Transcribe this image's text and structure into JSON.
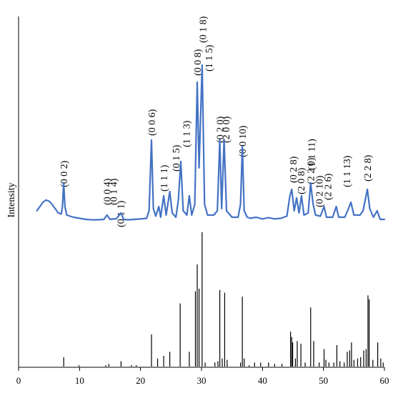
{
  "chart_data": {
    "type": "line",
    "ylabel": "Intensity",
    "xlabel": "",
    "xlim": [
      0,
      60
    ],
    "x_ticks": [
      "0",
      "10",
      "20",
      "30",
      "40",
      "50",
      "60"
    ],
    "grid": false,
    "colors": {
      "experimental": "#4472c4",
      "reference": "#000000",
      "axis": "#000000"
    },
    "series": [
      {
        "type": "line",
        "points": [
          [
            3,
            0.05
          ],
          [
            3.5,
            0.07
          ],
          [
            4,
            0.09
          ],
          [
            4.5,
            0.1
          ],
          [
            5,
            0.095
          ],
          [
            5.5,
            0.08
          ],
          [
            6,
            0.06
          ],
          [
            6.5,
            0.04
          ],
          [
            7,
            0.035
          ],
          [
            7.2,
            0.07
          ],
          [
            7.4,
            0.18
          ],
          [
            7.6,
            0.07
          ],
          [
            7.9,
            0.03
          ],
          [
            9,
            0.02
          ],
          [
            10,
            0.015
          ],
          [
            11,
            0.01
          ],
          [
            12,
            0.008
          ],
          [
            13,
            0.008
          ],
          [
            14,
            0.01
          ],
          [
            14.5,
            0.03
          ],
          [
            15,
            0.01
          ],
          [
            15.5,
            0.012
          ],
          [
            16,
            0.012
          ],
          [
            16.8,
            0.04
          ],
          [
            17.2,
            0.01
          ],
          [
            18,
            0.008
          ],
          [
            19,
            0.01
          ],
          [
            20,
            0.012
          ],
          [
            21,
            0.015
          ],
          [
            21.4,
            0.05
          ],
          [
            21.8,
            0.38
          ],
          [
            22.1,
            0.06
          ],
          [
            22.5,
            0.025
          ],
          [
            23,
            0.07
          ],
          [
            23.3,
            0.02
          ],
          [
            23.8,
            0.12
          ],
          [
            24.2,
            0.03
          ],
          [
            24.8,
            0.14
          ],
          [
            25.2,
            0.04
          ],
          [
            25.8,
            0.02
          ],
          [
            26.2,
            0.1
          ],
          [
            26.6,
            0.28
          ],
          [
            27,
            0.05
          ],
          [
            27.6,
            0.03
          ],
          [
            28,
            0.12
          ],
          [
            28.4,
            0.03
          ],
          [
            28.9,
            0.08
          ],
          [
            29.3,
            0.65
          ],
          [
            29.6,
            0.25
          ],
          [
            30.1,
            0.73
          ],
          [
            30.5,
            0.08
          ],
          [
            31,
            0.03
          ],
          [
            32,
            0.03
          ],
          [
            32.6,
            0.05
          ],
          [
            33,
            0.38
          ],
          [
            33.3,
            0.06
          ],
          [
            33.7,
            0.38
          ],
          [
            34.1,
            0.05
          ],
          [
            35,
            0.02
          ],
          [
            36,
            0.02
          ],
          [
            36.4,
            0.08
          ],
          [
            36.7,
            0.35
          ],
          [
            37,
            0.05
          ],
          [
            37.5,
            0.02
          ],
          [
            38,
            0.015
          ],
          [
            39,
            0.02
          ],
          [
            40,
            0.012
          ],
          [
            41,
            0.018
          ],
          [
            42,
            0.012
          ],
          [
            43,
            0.015
          ],
          [
            44,
            0.025
          ],
          [
            44.5,
            0.12
          ],
          [
            44.8,
            0.15
          ],
          [
            45.2,
            0.05
          ],
          [
            45.6,
            0.11
          ],
          [
            46,
            0.04
          ],
          [
            46.4,
            0.12
          ],
          [
            46.8,
            0.03
          ],
          [
            47.5,
            0.04
          ],
          [
            47.9,
            0.18
          ],
          [
            48.3,
            0.08
          ],
          [
            48.7,
            0.03
          ],
          [
            49.5,
            0.025
          ],
          [
            50.1,
            0.07
          ],
          [
            50.5,
            0.02
          ],
          [
            51.5,
            0.02
          ],
          [
            52.1,
            0.07
          ],
          [
            52.5,
            0.02
          ],
          [
            53.5,
            0.02
          ],
          [
            54.1,
            0.06
          ],
          [
            54.5,
            0.09
          ],
          [
            55,
            0.03
          ],
          [
            56,
            0.03
          ],
          [
            56.5,
            0.05
          ],
          [
            57.2,
            0.15
          ],
          [
            57.6,
            0.06
          ],
          [
            58.2,
            0.02
          ],
          [
            58.8,
            0.05
          ],
          [
            59.3,
            0.01
          ],
          [
            60,
            0.01
          ]
        ]
      },
      {
        "type": "stick",
        "points": [
          [
            7.4,
            0.07
          ],
          [
            9.9,
            0.01
          ],
          [
            14.3,
            0.01
          ],
          [
            14.8,
            0.02
          ],
          [
            16.8,
            0.04
          ],
          [
            18.5,
            0.01
          ],
          [
            19.3,
            0.01
          ],
          [
            21.8,
            0.24
          ],
          [
            22.8,
            0.06
          ],
          [
            23.8,
            0.08
          ],
          [
            24.8,
            0.11
          ],
          [
            26.5,
            0.47
          ],
          [
            28.0,
            0.11
          ],
          [
            29.0,
            0.56
          ],
          [
            29.3,
            0.76
          ],
          [
            29.6,
            0.58
          ],
          [
            30.1,
            1.0
          ],
          [
            30.6,
            0.03
          ],
          [
            32.2,
            0.03
          ],
          [
            32.7,
            0.04
          ],
          [
            33.0,
            0.57
          ],
          [
            33.4,
            0.06
          ],
          [
            33.8,
            0.55
          ],
          [
            34.2,
            0.05
          ],
          [
            36.4,
            0.03
          ],
          [
            36.7,
            0.52
          ],
          [
            37.0,
            0.06
          ],
          [
            37.8,
            0.01
          ],
          [
            38.7,
            0.03
          ],
          [
            39.7,
            0.03
          ],
          [
            41.0,
            0.03
          ],
          [
            42.0,
            0.02
          ],
          [
            43.2,
            0.02
          ],
          [
            44.6,
            0.26
          ],
          [
            44.8,
            0.22
          ],
          [
            44.95,
            0.18
          ],
          [
            45.4,
            0.06
          ],
          [
            45.7,
            0.19
          ],
          [
            46.3,
            0.17
          ],
          [
            47.0,
            0.03
          ],
          [
            47.9,
            0.44
          ],
          [
            48.4,
            0.19
          ],
          [
            49.3,
            0.03
          ],
          [
            50.1,
            0.13
          ],
          [
            50.4,
            0.05
          ],
          [
            50.9,
            0.03
          ],
          [
            51.7,
            0.03
          ],
          [
            52.2,
            0.16
          ],
          [
            52.7,
            0.04
          ],
          [
            53.4,
            0.03
          ],
          [
            53.9,
            0.11
          ],
          [
            54.3,
            0.12
          ],
          [
            54.6,
            0.18
          ],
          [
            55.0,
            0.05
          ],
          [
            55.6,
            0.06
          ],
          [
            56.1,
            0.07
          ],
          [
            56.6,
            0.12
          ],
          [
            57.0,
            0.13
          ],
          [
            57.3,
            0.53
          ],
          [
            57.5,
            0.5
          ],
          [
            58.1,
            0.05
          ],
          [
            58.9,
            0.18
          ],
          [
            59.4,
            0.06
          ],
          [
            59.8,
            0.03
          ]
        ]
      }
    ],
    "annotations": [
      {
        "text": "(0 0 2)",
        "x": 7.4
      },
      {
        "text": "(0 0 4)",
        "x": 14.5
      },
      {
        "text": "(0 1 1)",
        "x": 16.7
      },
      {
        "text": "(0 1 4)",
        "x": 15.5
      },
      {
        "text": "(0 0 6)",
        "x": 21.8
      },
      {
        "text": "(1 1 1)",
        "x": 23.8
      },
      {
        "text": "(0 1 5)",
        "x": 25.8
      },
      {
        "text": "(1 1 3)",
        "x": 27.5
      },
      {
        "text": "(0 0 8)",
        "x": 29.3
      },
      {
        "text": "(0 1 8)",
        "x": 30.2
      },
      {
        "text": "(1 1 5)",
        "x": 31.2
      },
      {
        "text": "(0 2 0)",
        "x": 33.0
      },
      {
        "text": "(2 0 0)",
        "x": 34.0
      },
      {
        "text": "(0 0 10)",
        "x": 36.7
      },
      {
        "text": "(0 2 8)",
        "x": 45.0
      },
      {
        "text": "(2 0 8)",
        "x": 46.3
      },
      {
        "text": "(1 1 11)",
        "x": 48.0
      },
      {
        "text": "(2 2 0)",
        "x": 47.9
      },
      {
        "text": "(0 2 10)",
        "x": 49.3
      },
      {
        "text": "(2 2 6)",
        "x": 50.7
      },
      {
        "text": "(1 1 13)",
        "x": 53.8
      },
      {
        "text": "(2 2 8)",
        "x": 57.2
      }
    ]
  }
}
